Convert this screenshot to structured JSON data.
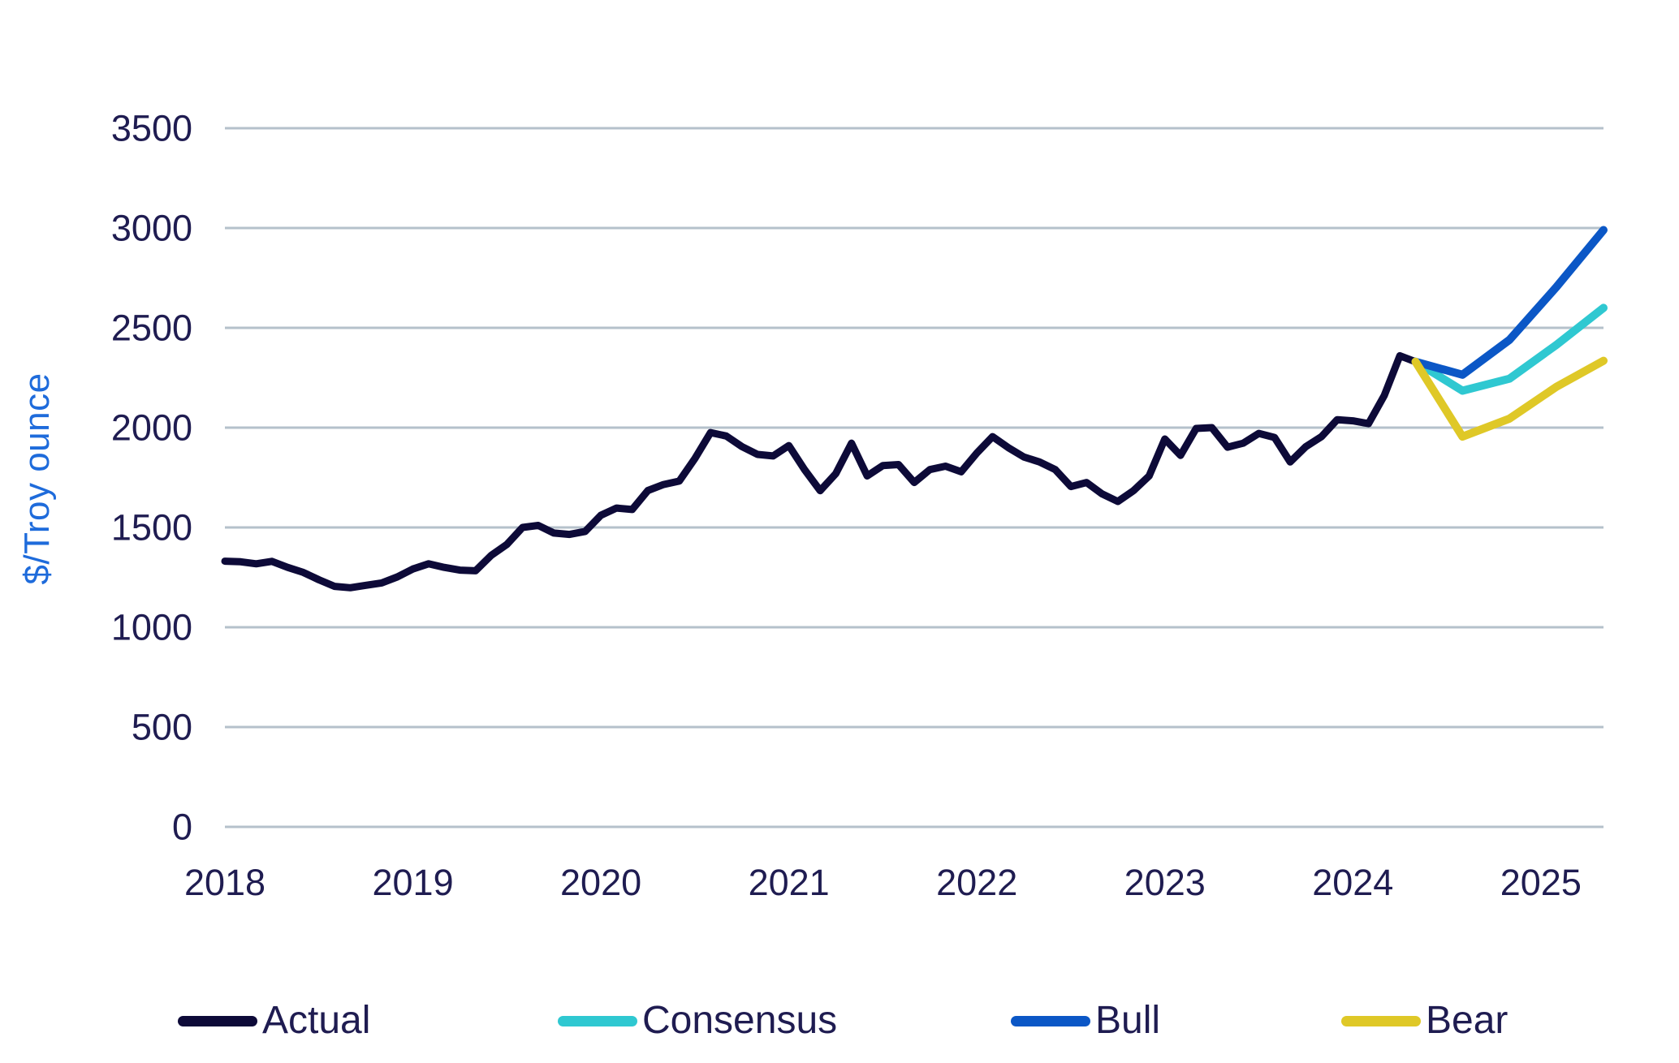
{
  "chart_data": {
    "type": "line",
    "title": "",
    "ylabel": "$/Troy ounce",
    "ylim": [
      0,
      3500
    ],
    "y_ticks": [
      3500,
      3000,
      2500,
      2000,
      1500,
      1000,
      500,
      0
    ],
    "x_tick_labels": [
      "2018",
      "2019",
      "2020",
      "2021",
      "2022",
      "2023",
      "2024",
      "2025"
    ],
    "x_range_months": 88,
    "grid": "horizontal-only",
    "legend_position": "bottom",
    "series": [
      {
        "name": "Actual",
        "color": "#0d0a38",
        "stroke_width": 9,
        "x_start_month": 0,
        "x_step_months": 1,
        "values": [
          1331,
          1328,
          1318,
          1330,
          1300,
          1275,
          1238,
          1205,
          1198,
          1210,
          1222,
          1252,
          1292,
          1318,
          1300,
          1286,
          1283,
          1360,
          1415,
          1500,
          1510,
          1472,
          1465,
          1480,
          1561,
          1597,
          1590,
          1685,
          1715,
          1732,
          1845,
          1975,
          1958,
          1905,
          1866,
          1858,
          1910,
          1790,
          1684,
          1770,
          1922,
          1758,
          1810,
          1815,
          1725,
          1790,
          1807,
          1779,
          1873,
          1955,
          1900,
          1853,
          1828,
          1790,
          1705,
          1725,
          1668,
          1630,
          1684,
          1758,
          1943,
          1861,
          1996,
          2000,
          1902,
          1922,
          1971,
          1951,
          1828,
          1905,
          1955,
          2040,
          2034,
          2020,
          2160,
          2360,
          2330
        ]
      },
      {
        "name": "Consensus",
        "color": "#2fc8d1",
        "stroke_width": 10,
        "x_months": [
          76,
          79,
          82,
          85,
          88
        ],
        "values": [
          2330,
          2185,
          2245,
          2415,
          2600
        ]
      },
      {
        "name": "Bull",
        "color": "#0b57c6",
        "stroke_width": 10,
        "x_months": [
          76,
          79,
          82,
          85,
          88
        ],
        "values": [
          2330,
          2265,
          2440,
          2705,
          2990
        ]
      },
      {
        "name": "Bear",
        "color": "#dfc827",
        "stroke_width": 10,
        "x_months": [
          76,
          79,
          82,
          85,
          88
        ],
        "values": [
          2330,
          1955,
          2045,
          2205,
          2335
        ]
      }
    ],
    "colors": {
      "tick_text": "#1f1c51",
      "axis_title_text": "#1e6bdb",
      "gridline": "#b5c1cb",
      "background": "#ffffff"
    }
  }
}
